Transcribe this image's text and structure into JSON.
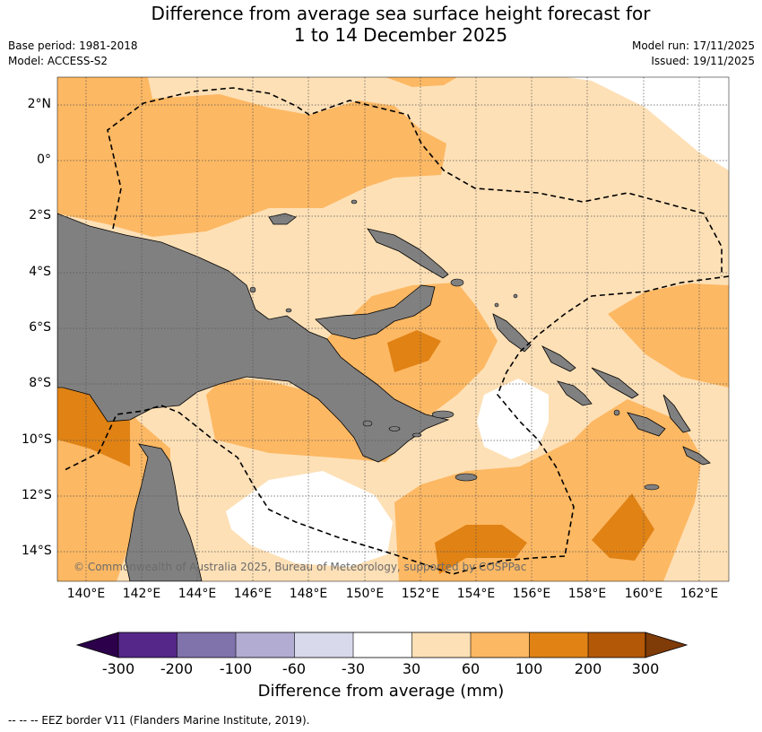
{
  "header": {
    "title_line1": "Difference from average sea surface height forecast for",
    "title_line2": "1 to 14 December 2025",
    "base_period": "Base period: 1981-2018",
    "model": "Model: ACCESS-S2",
    "model_run": "Model run: 17/11/2025",
    "issued": "Issued: 19/11/2025"
  },
  "map": {
    "lat_labels": [
      "2°N",
      "0°",
      "2°S",
      "4°S",
      "6°S",
      "8°S",
      "10°S",
      "12°S",
      "14°S"
    ],
    "lon_labels": [
      "140°E",
      "142°E",
      "144°E",
      "146°E",
      "148°E",
      "150°E",
      "152°E",
      "154°E",
      "156°E",
      "158°E",
      "160°E",
      "162°E"
    ],
    "land_color": "#808080",
    "copyright": "© Commonwealth of Australia 2025, Bureau of Meteorology, supported by COSPPac"
  },
  "colorbar": {
    "ticks": [
      "-300",
      "-200",
      "-100",
      "-60",
      "-30",
      "30",
      "60",
      "100",
      "200",
      "300"
    ],
    "colors": [
      "#2d004b",
      "#542788",
      "#8073ac",
      "#b2abd2",
      "#d8daeb",
      "#ffffff",
      "#fee0b6",
      "#fdb863",
      "#e08214",
      "#b35806",
      "#7f3b08"
    ],
    "label": "Difference from average (mm)"
  },
  "footnote": "-- -- -- EEZ border V11 (Flanders Marine Institute, 2019)."
}
